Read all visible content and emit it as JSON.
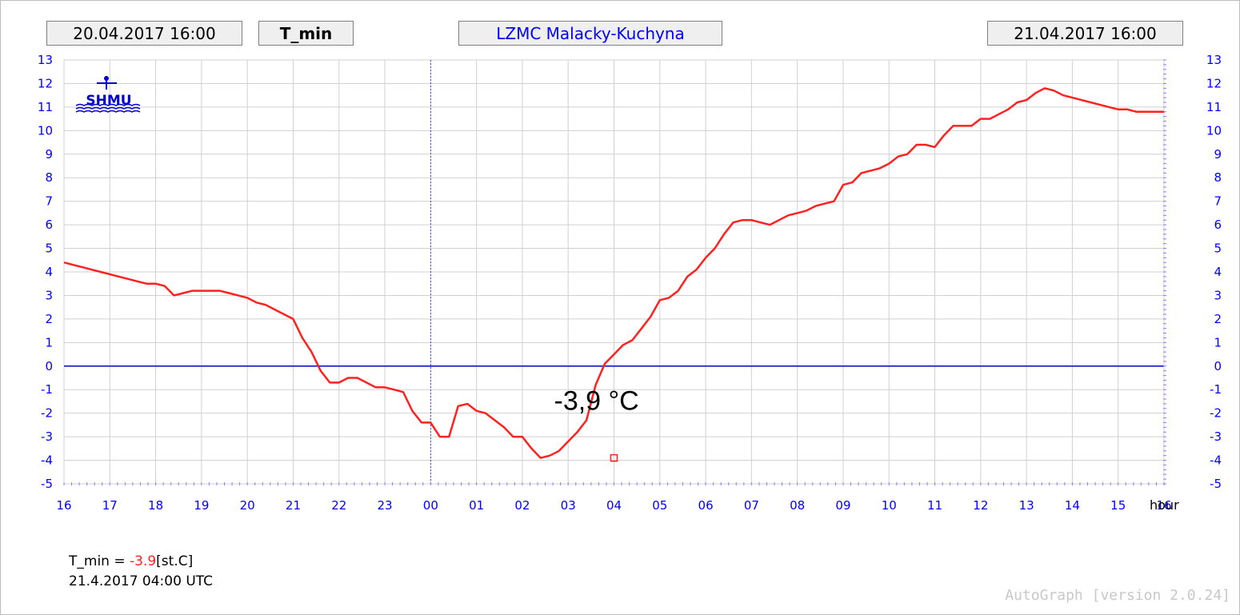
{
  "header": {
    "start_time": "20.04.2017 16:00",
    "parameter": "T_min",
    "station": "LZMC Malacky-Kuchyna",
    "end_time": "21.04.2017 16:00"
  },
  "logo": {
    "text": "SHMU"
  },
  "footer": {
    "label_prefix": "T_min = ",
    "value": "-3.9",
    "unit": "[st.C]",
    "timestamp": "21.4.2017 04:00 UTC"
  },
  "version": "AutoGraph [version 2.0.24]",
  "colors": {
    "series": "#ff2020",
    "axis_text": "#0000ff",
    "zero_line": "#0000cc",
    "grid": "#d0d0d0",
    "station_text": "#0000ff"
  },
  "chart_data": {
    "type": "line",
    "xlabel": "hour",
    "ylabel": "",
    "ylim": [
      -5,
      13
    ],
    "yticks": [
      -5,
      -4,
      -3,
      -2,
      -1,
      0,
      1,
      2,
      3,
      4,
      5,
      6,
      7,
      8,
      9,
      10,
      11,
      12,
      13
    ],
    "xticks": [
      "16",
      "17",
      "18",
      "19",
      "20",
      "21",
      "22",
      "23",
      "00",
      "01",
      "02",
      "03",
      "04",
      "05",
      "06",
      "07",
      "08",
      "09",
      "10",
      "11",
      "12",
      "13",
      "14",
      "15",
      "16"
    ],
    "xlim_hours": [
      0,
      24
    ],
    "grid": true,
    "annotation": {
      "text": "-3,9 °C",
      "x": 12.0,
      "y": -3.9
    },
    "midnight_marker_hours": 8,
    "series": [
      {
        "x": [
          0,
          0.2,
          0.4,
          0.6,
          0.8,
          1,
          1.2,
          1.4,
          1.6,
          1.8,
          2,
          2.2,
          2.4,
          2.6,
          2.8,
          3,
          3.2,
          3.4,
          3.6,
          3.8,
          4,
          4.2,
          4.4,
          4.6,
          4.8,
          5,
          5.2,
          5.4,
          5.6,
          5.8,
          6,
          6.2,
          6.4,
          6.6,
          6.8,
          7,
          7.2,
          7.4,
          7.6,
          7.8,
          8,
          8.2,
          8.4,
          8.6,
          8.8,
          9,
          9.2,
          9.4,
          9.6,
          9.8,
          10,
          10.2,
          10.4,
          10.6,
          10.8,
          11,
          11.2,
          11.4,
          11.6,
          11.8,
          12,
          12.2,
          12.4,
          12.6,
          12.8,
          13,
          13.2,
          13.4,
          13.6,
          13.8,
          14,
          14.2,
          14.4,
          14.6,
          14.8,
          15,
          15.2,
          15.4,
          15.6,
          15.8,
          16,
          16.2,
          16.4,
          16.6,
          16.8,
          17,
          17.2,
          17.4,
          17.6,
          17.8,
          18,
          18.2,
          18.4,
          18.6,
          18.8,
          19,
          19.2,
          19.4,
          19.6,
          19.8,
          20,
          20.2,
          20.4,
          20.6,
          20.8,
          21,
          21.2,
          21.4,
          21.6,
          21.8,
          22,
          22.2,
          22.4,
          22.6,
          22.8,
          23,
          23.2,
          23.4,
          23.6,
          23.8,
          24
        ],
        "y": [
          4.4,
          4.3,
          4.2,
          4.1,
          4.0,
          3.9,
          3.8,
          3.7,
          3.6,
          3.5,
          3.5,
          3.4,
          3.0,
          3.1,
          3.2,
          3.2,
          3.2,
          3.2,
          3.1,
          3.0,
          2.9,
          2.7,
          2.6,
          2.4,
          2.2,
          2.0,
          1.2,
          0.6,
          -0.2,
          -0.7,
          -0.7,
          -0.5,
          -0.5,
          -0.7,
          -0.9,
          -0.9,
          -1.0,
          -1.1,
          -1.9,
          -2.4,
          -2.4,
          -3.0,
          -3.0,
          -1.7,
          -1.6,
          -1.9,
          -2.0,
          -2.3,
          -2.6,
          -3.0,
          -3.0,
          -3.5,
          -3.9,
          -3.8,
          -3.6,
          -3.2,
          -2.8,
          -2.3,
          -0.8,
          0.1,
          0.5,
          0.9,
          1.1,
          1.6,
          2.1,
          2.8,
          2.9,
          3.2,
          3.8,
          4.1,
          4.6,
          5.0,
          5.6,
          6.1,
          6.2,
          6.2,
          6.1,
          6.0,
          6.2,
          6.4,
          6.5,
          6.6,
          6.8,
          6.9,
          7.0,
          7.7,
          7.8,
          8.2,
          8.3,
          8.4,
          8.6,
          8.9,
          9.0,
          9.4,
          9.4,
          9.3,
          9.8,
          10.2,
          10.2,
          10.2,
          10.5,
          10.5,
          10.7,
          10.9,
          11.2,
          11.3,
          11.6,
          11.8,
          11.7,
          11.5,
          11.4,
          11.3,
          11.2,
          11.1,
          11.0,
          10.9,
          10.9,
          10.8,
          10.8,
          10.8,
          10.8
        ]
      }
    ]
  }
}
